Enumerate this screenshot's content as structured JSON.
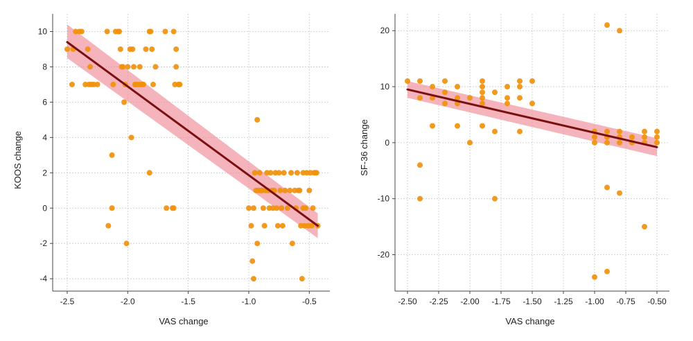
{
  "colors": {
    "point": "#f0910c",
    "point_edge": "#e07a0a",
    "line": "#7a1010",
    "band": "#f08a96"
  },
  "chart_data": [
    {
      "type": "scatter",
      "xlabel": "VAS change",
      "ylabel": "KOOS change",
      "xlim": [
        -2.62,
        -0.33
      ],
      "ylim": [
        -4.7,
        11.0
      ],
      "xticks": [
        -2.5,
        -2.0,
        -1.5,
        -1.0,
        -0.5
      ],
      "xtick_labels": [
        "-2.5",
        "-2.0",
        "-1.5",
        "-1.0",
        "-0.5"
      ],
      "yticks": [
        -4,
        -2,
        0,
        2,
        4,
        6,
        8,
        10
      ],
      "ytick_labels": [
        "-4",
        "-2",
        "0",
        "2",
        "4",
        "6",
        "8",
        "10"
      ],
      "grid": true,
      "fit_line": {
        "x": [
          -2.5,
          -0.43
        ],
        "y": [
          9.4,
          -1.0
        ]
      },
      "ci_band": {
        "x": [
          -2.5,
          -0.43
        ],
        "lower": [
          8.5,
          -1.7
        ],
        "upper": [
          10.4,
          -0.3
        ]
      },
      "points": [
        [
          -2.5,
          9
        ],
        [
          -2.45,
          9
        ],
        [
          -2.43,
          10
        ],
        [
          -2.4,
          10
        ],
        [
          -2.38,
          10
        ],
        [
          -2.46,
          7
        ],
        [
          -2.35,
          7
        ],
        [
          -2.33,
          9
        ],
        [
          -2.32,
          7
        ],
        [
          -2.31,
          8
        ],
        [
          -2.3,
          7
        ],
        [
          -2.28,
          7
        ],
        [
          -2.25,
          7
        ],
        [
          -2.17,
          10
        ],
        [
          -2.16,
          -1
        ],
        [
          -2.13,
          3
        ],
        [
          -2.13,
          0
        ],
        [
          -2.12,
          7
        ],
        [
          -2.1,
          10
        ],
        [
          -2.08,
          10
        ],
        [
          -2.07,
          10
        ],
        [
          -2.06,
          9
        ],
        [
          -2.05,
          8
        ],
        [
          -2.04,
          8
        ],
        [
          -2.03,
          6
        ],
        [
          -2.02,
          7
        ],
        [
          -2.01,
          -2
        ],
        [
          -2.0,
          8
        ],
        [
          -1.98,
          9
        ],
        [
          -1.97,
          4
        ],
        [
          -1.96,
          9
        ],
        [
          -1.95,
          8
        ],
        [
          -1.94,
          7
        ],
        [
          -1.93,
          7
        ],
        [
          -1.91,
          7
        ],
        [
          -1.9,
          8
        ],
        [
          -1.89,
          7
        ],
        [
          -1.88,
          7
        ],
        [
          -1.87,
          7
        ],
        [
          -1.85,
          9
        ],
        [
          -1.82,
          2
        ],
        [
          -1.82,
          10
        ],
        [
          -1.81,
          10
        ],
        [
          -1.8,
          9
        ],
        [
          -1.79,
          7
        ],
        [
          -1.77,
          8
        ],
        [
          -1.69,
          10
        ],
        [
          -1.68,
          0
        ],
        [
          -1.63,
          0
        ],
        [
          -1.62,
          0
        ],
        [
          -1.62,
          10
        ],
        [
          -1.61,
          7
        ],
        [
          -1.6,
          9
        ],
        [
          -1.6,
          8
        ],
        [
          -1.58,
          7
        ],
        [
          -1.57,
          7
        ],
        [
          -1.0,
          0
        ],
        [
          -0.98,
          -1
        ],
        [
          -0.97,
          -3
        ],
        [
          -0.96,
          -4
        ],
        [
          -0.96,
          0
        ],
        [
          -0.95,
          2
        ],
        [
          -0.94,
          1
        ],
        [
          -0.93,
          5
        ],
        [
          -0.93,
          -2
        ],
        [
          -0.92,
          1
        ],
        [
          -0.91,
          2
        ],
        [
          -0.9,
          1
        ],
        [
          -0.89,
          1
        ],
        [
          -0.88,
          0
        ],
        [
          -0.87,
          -1
        ],
        [
          -0.86,
          1
        ],
        [
          -0.85,
          2
        ],
        [
          -0.84,
          1
        ],
        [
          -0.83,
          0
        ],
        [
          -0.82,
          2
        ],
        [
          -0.81,
          1
        ],
        [
          -0.8,
          0
        ],
        [
          -0.79,
          1
        ],
        [
          -0.78,
          2
        ],
        [
          -0.77,
          0
        ],
        [
          -0.76,
          -1
        ],
        [
          -0.75,
          2
        ],
        [
          -0.74,
          1
        ],
        [
          -0.73,
          0
        ],
        [
          -0.72,
          -1
        ],
        [
          -0.71,
          2
        ],
        [
          -0.7,
          1
        ],
        [
          -0.68,
          0
        ],
        [
          -0.66,
          1
        ],
        [
          -0.65,
          2
        ],
        [
          -0.64,
          -2
        ],
        [
          -0.62,
          1
        ],
        [
          -0.61,
          0
        ],
        [
          -0.6,
          2
        ],
        [
          -0.59,
          1
        ],
        [
          -0.58,
          1
        ],
        [
          -0.57,
          -1
        ],
        [
          -0.56,
          -4
        ],
        [
          -0.55,
          0
        ],
        [
          -0.55,
          2
        ],
        [
          -0.54,
          -1
        ],
        [
          -0.53,
          0
        ],
        [
          -0.52,
          2
        ],
        [
          -0.51,
          -1
        ],
        [
          -0.5,
          1
        ],
        [
          -0.49,
          2
        ],
        [
          -0.48,
          -1
        ],
        [
          -0.47,
          0
        ],
        [
          -0.46,
          2
        ],
        [
          -0.45,
          2
        ],
        [
          -0.44,
          2
        ],
        [
          -0.43,
          -1
        ]
      ]
    },
    {
      "type": "scatter",
      "xlabel": "VAS change",
      "ylabel": "SF-36 change",
      "xlim": [
        -2.6,
        -0.4
      ],
      "ylim": [
        -26.5,
        23.0
      ],
      "xticks": [
        -2.5,
        -2.25,
        -2.0,
        -1.75,
        -1.5,
        -1.25,
        -1.0,
        -0.75,
        -0.5
      ],
      "xtick_labels": [
        "-2.50",
        "-2.25",
        "-2.00",
        "-1.75",
        "-1.50",
        "-1.25",
        "-1.00",
        "-0.75",
        "-0.50"
      ],
      "yticks": [
        -20,
        -10,
        0,
        10,
        20
      ],
      "ytick_labels": [
        "-20",
        "-10",
        "0",
        "10",
        "20"
      ],
      "grid": true,
      "fit_line": {
        "x": [
          -2.5,
          -0.5
        ],
        "y": [
          9.5,
          -0.8
        ]
      },
      "ci_band": {
        "x": [
          -2.5,
          -0.5
        ],
        "lower": [
          8.0,
          -2.4
        ],
        "upper": [
          11.0,
          0.8
        ]
      },
      "points": [
        [
          -2.5,
          11
        ],
        [
          -2.4,
          11
        ],
        [
          -2.4,
          8
        ],
        [
          -2.4,
          -4
        ],
        [
          -2.4,
          -10
        ],
        [
          -2.3,
          10
        ],
        [
          -2.3,
          8
        ],
        [
          -2.3,
          3
        ],
        [
          -2.2,
          11
        ],
        [
          -2.2,
          9
        ],
        [
          -2.2,
          7
        ],
        [
          -2.1,
          10
        ],
        [
          -2.1,
          8
        ],
        [
          -2.1,
          7
        ],
        [
          -2.1,
          3
        ],
        [
          -2.0,
          8
        ],
        [
          -2.0,
          0
        ],
        [
          -1.9,
          11
        ],
        [
          -1.9,
          10
        ],
        [
          -1.9,
          9
        ],
        [
          -1.9,
          8
        ],
        [
          -1.9,
          7
        ],
        [
          -1.9,
          3
        ],
        [
          -1.8,
          9
        ],
        [
          -1.8,
          2
        ],
        [
          -1.8,
          -10
        ],
        [
          -1.7,
          10
        ],
        [
          -1.7,
          8
        ],
        [
          -1.7,
          7
        ],
        [
          -1.6,
          11
        ],
        [
          -1.6,
          10
        ],
        [
          -1.6,
          8
        ],
        [
          -1.6,
          2
        ],
        [
          -1.5,
          11
        ],
        [
          -1.5,
          7
        ],
        [
          -1.0,
          2
        ],
        [
          -1.0,
          1
        ],
        [
          -1.0,
          0
        ],
        [
          -1.0,
          -24
        ],
        [
          -0.9,
          21
        ],
        [
          -0.9,
          2
        ],
        [
          -0.9,
          1
        ],
        [
          -0.9,
          0
        ],
        [
          -0.9,
          -8
        ],
        [
          -0.9,
          -23
        ],
        [
          -0.8,
          20
        ],
        [
          -0.8,
          2
        ],
        [
          -0.8,
          1
        ],
        [
          -0.8,
          0
        ],
        [
          -0.8,
          -9
        ],
        [
          -0.7,
          1
        ],
        [
          -0.7,
          0
        ],
        [
          -0.6,
          2
        ],
        [
          -0.6,
          1
        ],
        [
          -0.6,
          0
        ],
        [
          -0.6,
          -15
        ],
        [
          -0.5,
          2
        ],
        [
          -0.5,
          1
        ],
        [
          -0.5,
          0
        ]
      ]
    }
  ]
}
